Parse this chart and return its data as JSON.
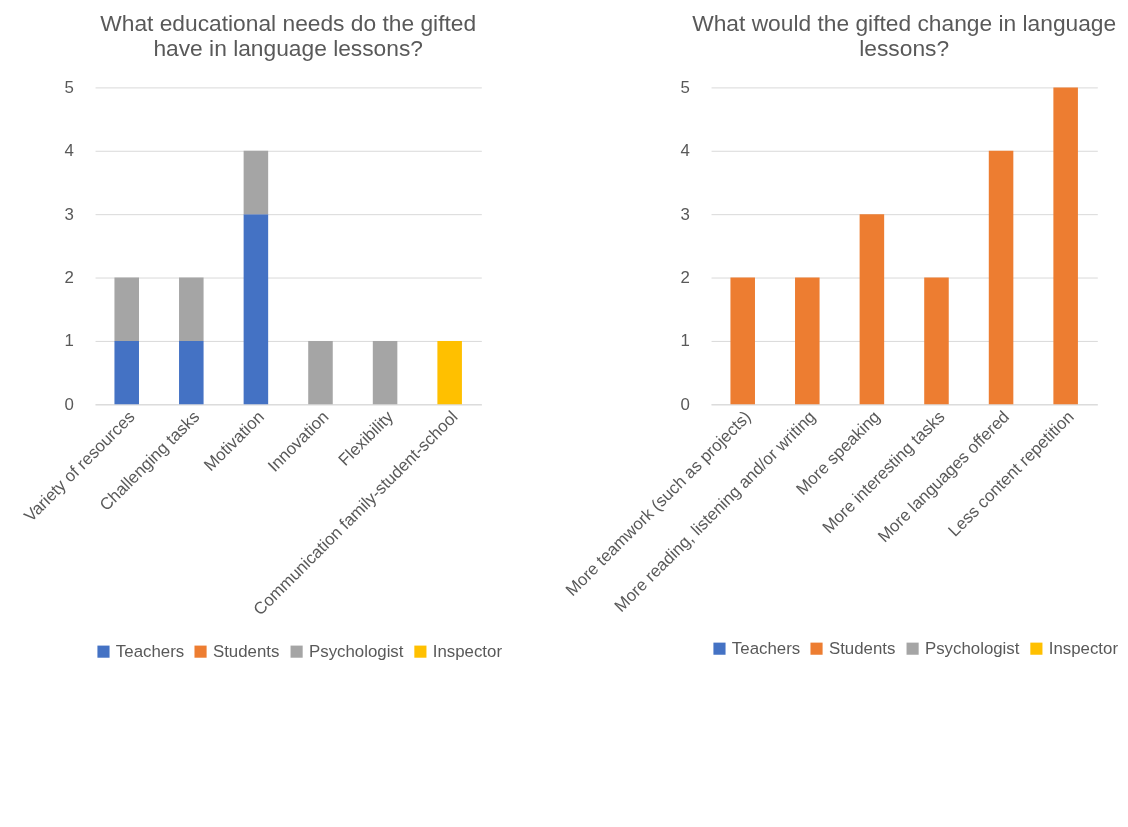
{
  "chart_data": [
    {
      "type": "bar",
      "title": "What educational needs do the gifted have in language lessons?",
      "stacked": true,
      "categories": [
        "Variety of resources",
        "Challenging tasks",
        "Motivation",
        "Innovation",
        "Flexibility",
        "Communication family-student-school"
      ],
      "ylim": [
        0,
        5
      ],
      "yticks": [
        0,
        1,
        2,
        3,
        4,
        5
      ],
      "grid": "y",
      "legend": "bottom",
      "series": [
        {
          "name": "Teachers",
          "color": "#4472c4",
          "values": [
            1,
            1,
            3,
            0,
            0,
            0
          ]
        },
        {
          "name": "Students",
          "color": "#ed7d31",
          "values": [
            0,
            0,
            0,
            0,
            0,
            0
          ]
        },
        {
          "name": "Psychologist",
          "color": "#a5a5a5",
          "values": [
            1,
            1,
            1,
            1,
            1,
            0
          ]
        },
        {
          "name": "Inspector",
          "color": "#ffc000",
          "values": [
            0,
            0,
            0,
            0,
            0,
            1
          ]
        }
      ]
    },
    {
      "type": "bar",
      "title": "What would the gifted change in language lessons?",
      "stacked": true,
      "categories": [
        "More teamwork (such as projects)",
        "More reading, listening and/or writing",
        "More speaking",
        "More interesting tasks",
        "More languages offered",
        "Less content repetition"
      ],
      "ylim": [
        0,
        5
      ],
      "yticks": [
        0,
        1,
        2,
        3,
        4,
        5
      ],
      "grid": "y",
      "legend": "bottom",
      "series": [
        {
          "name": "Teachers",
          "color": "#4472c4",
          "values": [
            0,
            0,
            0,
            0,
            0,
            0
          ]
        },
        {
          "name": "Students",
          "color": "#ed7d31",
          "values": [
            2,
            2,
            3,
            2,
            4,
            5
          ]
        },
        {
          "name": "Psychologist",
          "color": "#a5a5a5",
          "values": [
            0,
            0,
            0,
            0,
            0,
            0
          ]
        },
        {
          "name": "Inspector",
          "color": "#ffc000",
          "values": [
            0,
            0,
            0,
            0,
            0,
            0
          ]
        }
      ]
    }
  ]
}
